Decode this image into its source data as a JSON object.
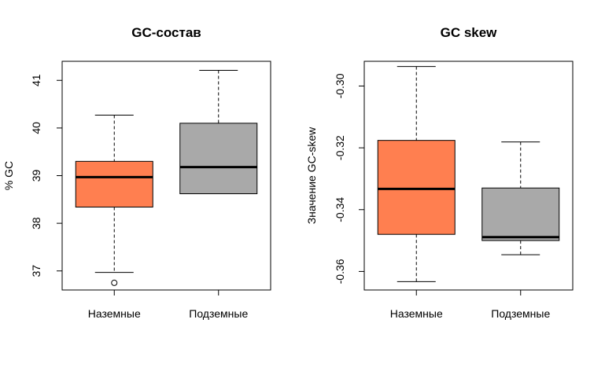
{
  "chart_data": [
    {
      "type": "boxplot",
      "title": "GC-состав",
      "xlabel": "",
      "ylabel": "% GC",
      "categories": [
        "Наземные",
        "Подземные"
      ],
      "ylim": [
        36.6,
        41.4
      ],
      "yticks": [
        37,
        38,
        39,
        40,
        41
      ],
      "ytick_labels": [
        "37",
        "38",
        "39",
        "40",
        "41"
      ],
      "grid": false,
      "boxes": [
        {
          "name": "Наземные",
          "color": "#ff7f50",
          "whisker_low": 36.97,
          "q1": 38.34,
          "median": 38.97,
          "q3": 39.3,
          "whisker_high": 40.27,
          "outliers": [
            36.75
          ]
        },
        {
          "name": "Подземные",
          "color": "#a9a9a9",
          "whisker_low": 38.62,
          "q1": 38.62,
          "median": 39.18,
          "q3": 40.1,
          "whisker_high": 41.21,
          "outliers": []
        }
      ]
    },
    {
      "type": "boxplot",
      "title": "GC skew",
      "xlabel": "",
      "ylabel": "Значение GC-skew",
      "categories": [
        "Наземные",
        "Подземные"
      ],
      "ylim": [
        -0.366,
        -0.292
      ],
      "yticks": [
        -0.36,
        -0.34,
        -0.32,
        -0.3
      ],
      "ytick_labels": [
        "-0.36",
        "-0.34",
        "-0.32",
        "-0.30"
      ],
      "grid": false,
      "boxes": [
        {
          "name": "Наземные",
          "color": "#ff7f50",
          "whisker_low": -0.3633,
          "q1": -0.348,
          "median": -0.3333,
          "q3": -0.3176,
          "whisker_high": -0.2937,
          "outliers": []
        },
        {
          "name": "Подземные",
          "color": "#a9a9a9",
          "whisker_low": -0.3546,
          "q1": -0.35,
          "median": -0.3489,
          "q3": -0.333,
          "whisker_high": -0.3181,
          "outliers": []
        }
      ]
    }
  ]
}
